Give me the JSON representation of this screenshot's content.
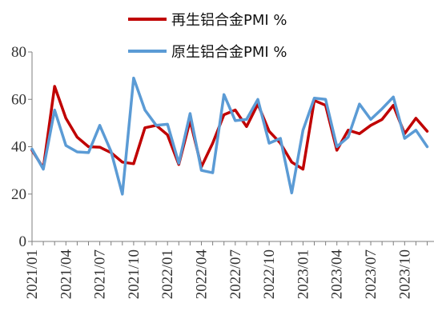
{
  "chart_data": {
    "type": "line",
    "title": "",
    "xlabel": "",
    "ylabel": "",
    "ylim": [
      0,
      80
    ],
    "yticks": [
      0,
      20,
      40,
      60,
      80
    ],
    "grid": false,
    "legend_position": "top",
    "x": [
      "2021/01",
      "2021/02",
      "2021/03",
      "2021/04",
      "2021/05",
      "2021/06",
      "2021/07",
      "2021/08",
      "2021/09",
      "2021/10",
      "2021/11",
      "2021/12",
      "2022/01",
      "2022/02",
      "2022/03",
      "2022/04",
      "2022/05",
      "2022/06",
      "2022/07",
      "2022/08",
      "2022/09",
      "2022/10",
      "2022/11",
      "2022/12",
      "2023/01",
      "2023/02",
      "2023/03",
      "2023/04",
      "2023/05",
      "2023/06",
      "2023/07",
      "2023/08",
      "2023/09",
      "2023/10",
      "2023/11",
      "2023/12"
    ],
    "xtick_labels": [
      "2021/01",
      "2021/04",
      "2021/07",
      "2021/10",
      "2022/01",
      "2022/04",
      "2022/07",
      "2022/10",
      "2023/01",
      "2023/04",
      "2023/07",
      "2023/10"
    ],
    "series": [
      {
        "name": "再生铝合金PMI %",
        "color": "#c00000",
        "values": [
          38.5,
          31.0,
          65.5,
          52.0,
          44.0,
          40.0,
          39.8,
          37.5,
          33.5,
          32.8,
          48.0,
          49.0,
          45.0,
          32.5,
          51.0,
          31.5,
          41.5,
          53.5,
          55.5,
          48.5,
          58.0,
          46.5,
          41.5,
          33.5,
          30.5,
          59.5,
          57.5,
          38.5,
          47.0,
          45.5,
          49.0,
          51.5,
          57.5,
          45.5,
          52.0,
          46.5
        ]
      },
      {
        "name": "原生铝合金PMI %",
        "color": "#5b9bd5",
        "values": [
          39.0,
          30.5,
          55.5,
          40.5,
          37.8,
          37.5,
          49.0,
          38.0,
          20.0,
          69.0,
          55.5,
          49.0,
          49.5,
          33.0,
          54.0,
          30.0,
          29.0,
          62.0,
          51.0,
          51.5,
          60.0,
          41.5,
          43.5,
          20.5,
          47.0,
          60.5,
          60.0,
          40.0,
          44.0,
          58.0,
          51.5,
          56.0,
          61.0,
          43.5,
          47.0,
          40.0
        ]
      }
    ]
  }
}
